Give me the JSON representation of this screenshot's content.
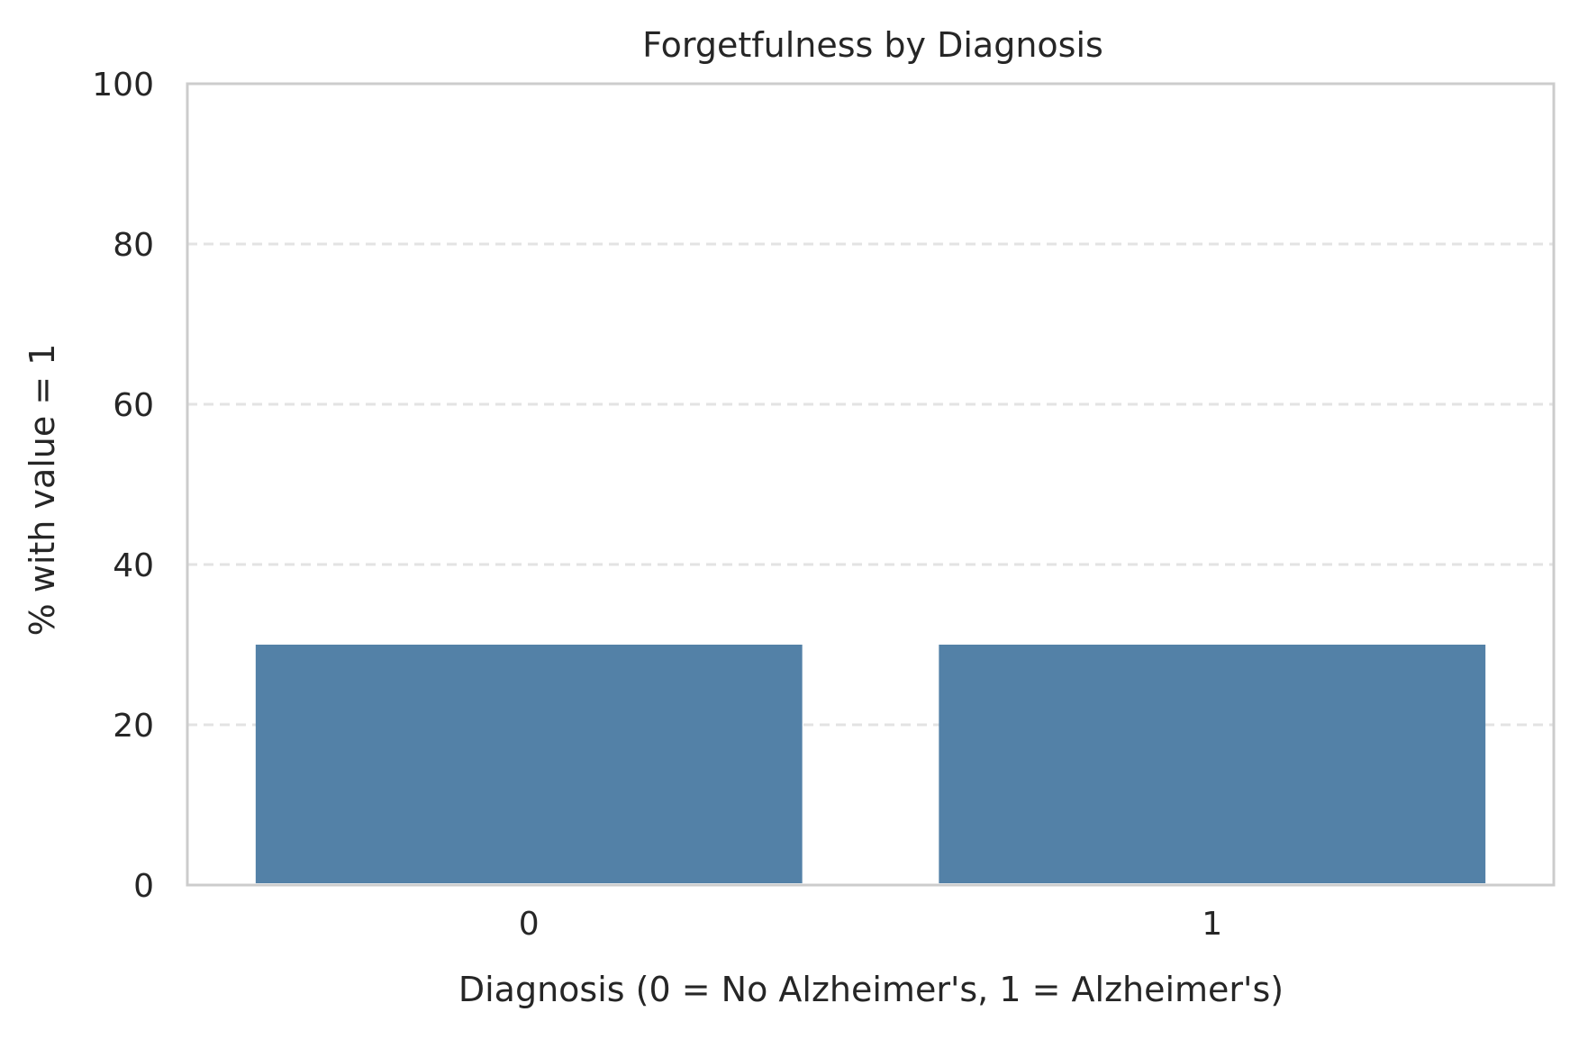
{
  "chart_data": {
    "type": "bar",
    "title": "Forgetfulness by Diagnosis",
    "xlabel": "Diagnosis (0 = No Alzheimer's, 1 = Alzheimer's)",
    "ylabel": "% with value = 1",
    "categories": [
      "0",
      "1"
    ],
    "values": [
      30.0,
      30.0
    ],
    "ylim": [
      0,
      100
    ],
    "yticks": [
      0,
      20,
      40,
      60,
      80,
      100
    ],
    "grid": "y-dashed",
    "bar_color": "#5381a7",
    "frame_color": "#cccccc",
    "grid_color": "#e3e3e3"
  }
}
